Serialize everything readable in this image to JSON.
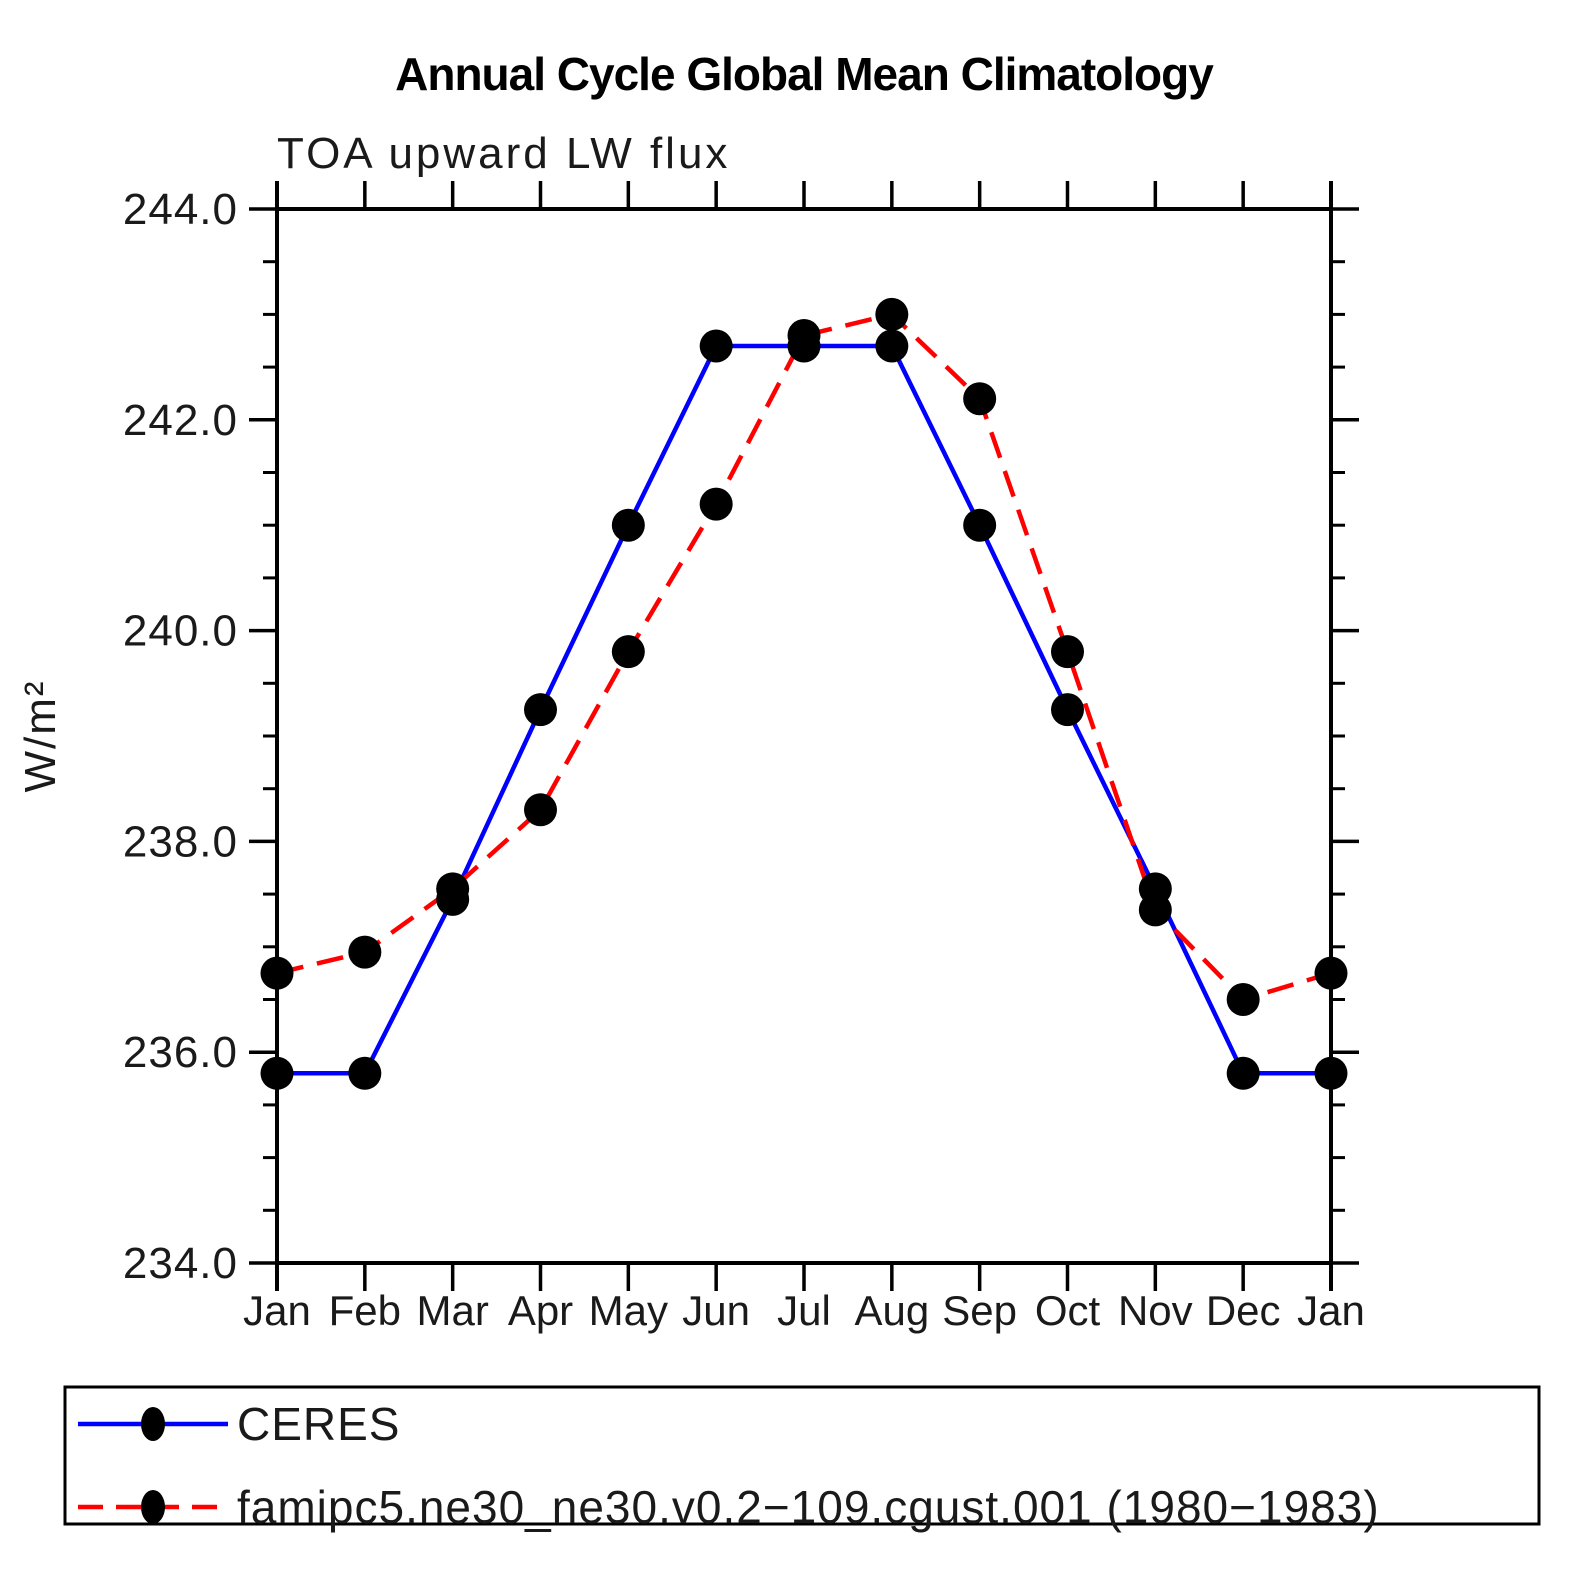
{
  "chart_data": {
    "type": "line",
    "title": "Annual Cycle Global Mean Climatology",
    "subtitle": "TOA upward LW flux",
    "ylabel": "W/m²",
    "xlabel": "",
    "categories": [
      "Jan",
      "Feb",
      "Mar",
      "Apr",
      "May",
      "Jun",
      "Jul",
      "Aug",
      "Sep",
      "Oct",
      "Nov",
      "Dec",
      "Jan"
    ],
    "ylim": [
      234.0,
      244.0
    ],
    "y_major_ticks": [
      244.0,
      242.0,
      240.0,
      238.0,
      236.0,
      234.0
    ],
    "y_minor_tick_step": 0.5,
    "grid": false,
    "legend_position": "bottom-box",
    "marker": "filled-black-circle",
    "marker_color": "#000000",
    "series": [
      {
        "name": "CERES",
        "color": "#0000ff",
        "line_style": "solid",
        "values": [
          235.8,
          235.8,
          237.45,
          239.25,
          241.0,
          242.7,
          242.7,
          242.7,
          241.0,
          239.25,
          237.55,
          235.8,
          235.8
        ]
      },
      {
        "name": "famipc5.ne30_ne30.v0.2−109.cgust.001 (1980−1983)",
        "color": "#ff0000",
        "line_style": "dashed",
        "values": [
          236.75,
          236.95,
          237.55,
          238.3,
          239.8,
          241.2,
          242.8,
          243.0,
          242.2,
          239.8,
          237.35,
          236.5,
          236.75
        ]
      }
    ]
  }
}
